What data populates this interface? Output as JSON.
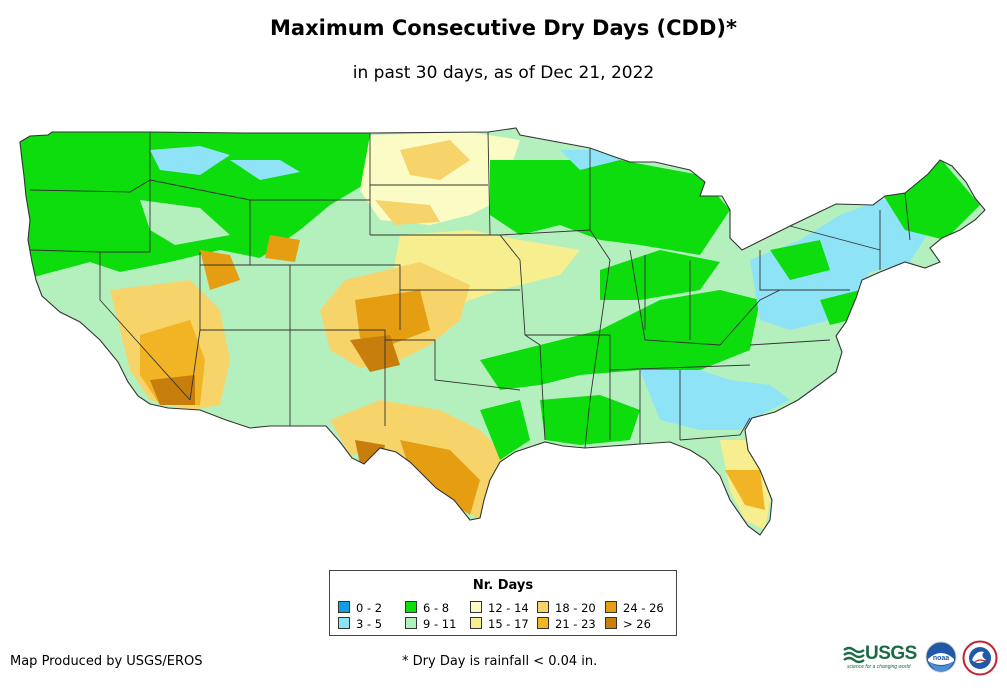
{
  "title": "Maximum Consecutive Dry Days (CDD)*",
  "subtitle": "in past 30 days, as of Dec 21, 2022",
  "legend": {
    "title": "Nr. Days",
    "items": [
      {
        "label": "0 - 2",
        "color": "#119de8"
      },
      {
        "label": "3 - 5",
        "color": "#8ee3f7"
      },
      {
        "label": "6 - 8",
        "color": "#0ddc0d"
      },
      {
        "label": "9 - 11",
        "color": "#b4f0be"
      },
      {
        "label": "12 - 14",
        "color": "#fbfbc6"
      },
      {
        "label": "15 - 17",
        "color": "#f7ef8f"
      },
      {
        "label": "18 - 20",
        "color": "#f6d46a"
      },
      {
        "label": "21 - 23",
        "color": "#f1b424"
      },
      {
        "label": "24 - 26",
        "color": "#e59d12"
      },
      {
        "label": "> 26",
        "color": "#c77e0d"
      }
    ]
  },
  "footer": {
    "credit": "Map Produced by USGS/EROS",
    "footnote": "* Dry Day is rainfall < 0.04 in."
  },
  "logos": {
    "usgs_wordmark": "USGS",
    "usgs_tagline": "science for a changing world",
    "noaa_wordmark": "noaa"
  },
  "colors": {
    "state_border": "#333333",
    "usgs_green": "#1a6b43",
    "noaa_blue": "#1e5aa8"
  }
}
